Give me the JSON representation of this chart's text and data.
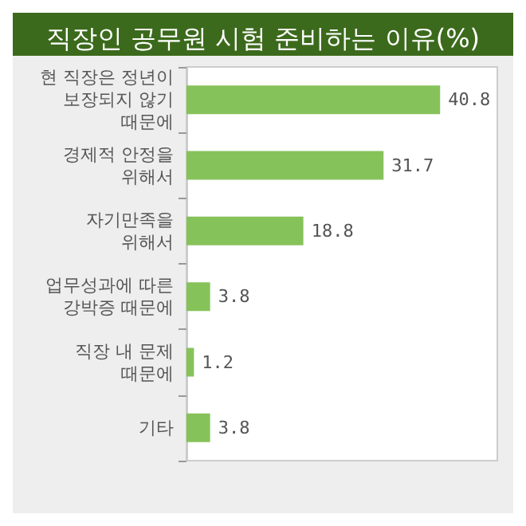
{
  "chart_data": {
    "type": "bar",
    "orientation": "horizontal",
    "title": "직장인 공무원 시험 준비하는 이유(%)",
    "categories": [
      "현 직장은 정년이\n보장되지 않기\n때문에",
      "경제적 안정을\n위해서",
      "자기만족을\n위해서",
      "업무성과에 따른\n강박증 때문에",
      "직장 내 문제\n때문에",
      "기타"
    ],
    "values": [
      40.8,
      31.7,
      18.8,
      3.8,
      1.2,
      3.8
    ],
    "color": "#86c25a",
    "data_labels": true
  }
}
